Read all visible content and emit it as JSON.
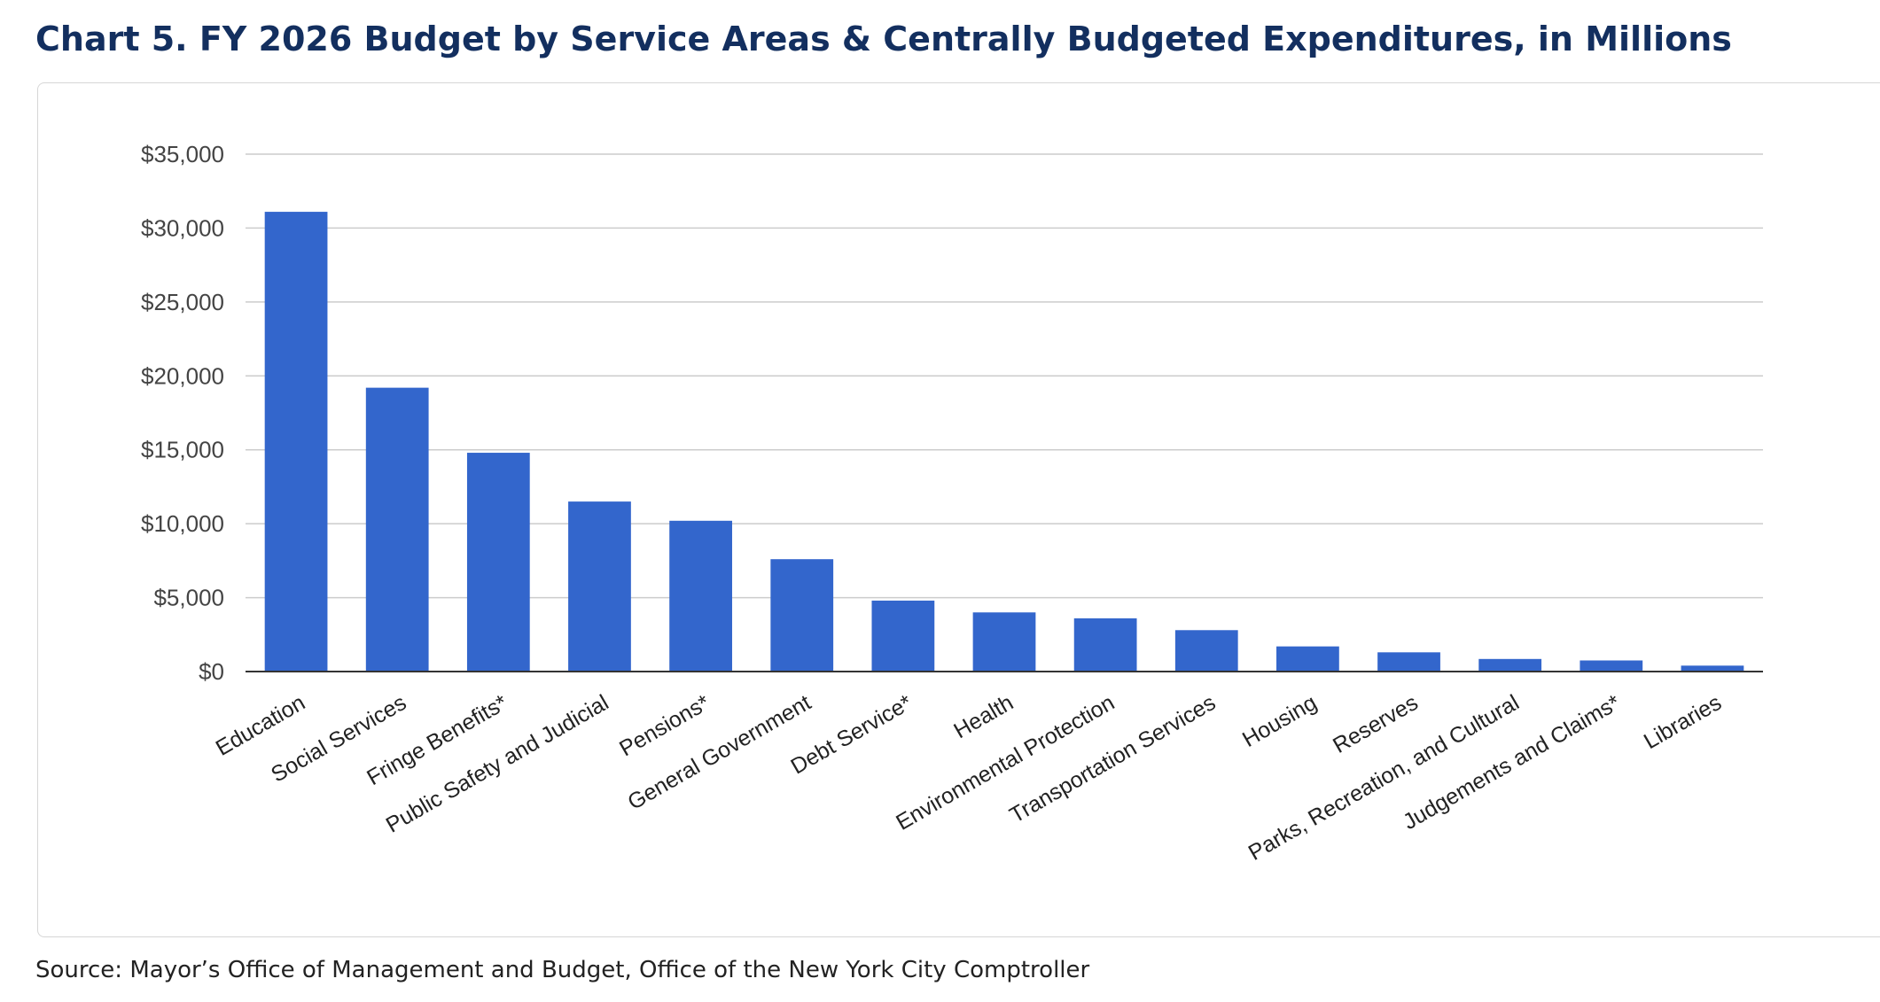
{
  "title": "Chart 5.  FY 2026 Budget by Service Areas & Centrally Budgeted Expenditures, in Millions",
  "source": "Source: Mayor’s Office of Management and Budget, Office of the New York City Comptroller",
  "colors": {
    "title": "#132f5f",
    "bar": "#3366cc",
    "grid": "#cccccc",
    "axis": "#333333",
    "tick_text": "#444444"
  },
  "chart_data": {
    "type": "bar",
    "categories": [
      "Education",
      "Social Services",
      "Fringe Benefits*",
      "Public Safety and Judicial",
      "Pensions*",
      "General Government",
      "Debt Service*",
      "Health",
      "Environmental Protection",
      "Transportation Services",
      "Housing",
      "Reserves",
      "Parks, Recreation, and Cultural",
      "Judgements and Claims*",
      "Libraries"
    ],
    "values": [
      31100,
      19200,
      14800,
      11500,
      10200,
      7600,
      4800,
      4000,
      3600,
      2800,
      1700,
      1300,
      850,
      750,
      400
    ],
    "ylim": [
      0,
      35000
    ],
    "yticks": [
      0,
      5000,
      10000,
      15000,
      20000,
      25000,
      30000,
      35000
    ],
    "ytick_labels": [
      "$0",
      "$5,000",
      "$10,000",
      "$15,000",
      "$20,000",
      "$25,000",
      "$30,000",
      "$35,000"
    ],
    "xlabel": "",
    "ylabel": "",
    "grid": true,
    "legend": "none"
  }
}
